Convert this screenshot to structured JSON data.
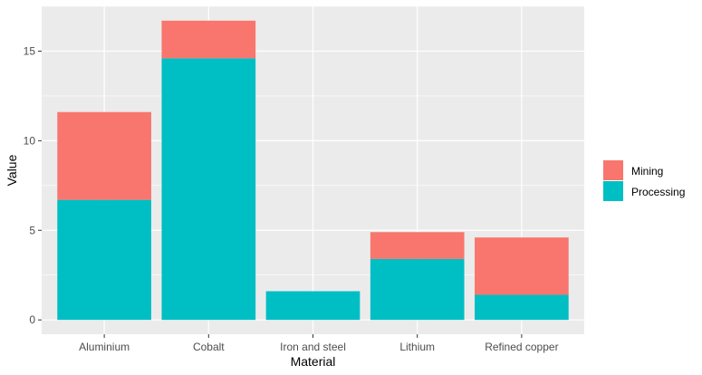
{
  "chart_data": {
    "type": "bar",
    "stacked": true,
    "categories": [
      "Aluminium",
      "Cobalt",
      "Iron and steel",
      "Lithium",
      "Refined copper"
    ],
    "series": [
      {
        "name": "Processing",
        "values": [
          6.7,
          14.6,
          1.6,
          3.4,
          1.4
        ],
        "color": "#00BFC4"
      },
      {
        "name": "Mining",
        "values": [
          4.9,
          2.1,
          0.0,
          1.5,
          3.2
        ],
        "color": "#F8766D"
      }
    ],
    "legend_order": [
      "Mining",
      "Processing"
    ],
    "xlabel": "Material",
    "ylabel": "Value",
    "yticks": [
      0,
      5,
      10,
      15
    ],
    "ylim": [
      -0.8,
      17.5
    ],
    "grid": true,
    "legend_position": "right",
    "panel_background": "#EBEBEB",
    "grid_color": "#FFFFFF"
  }
}
